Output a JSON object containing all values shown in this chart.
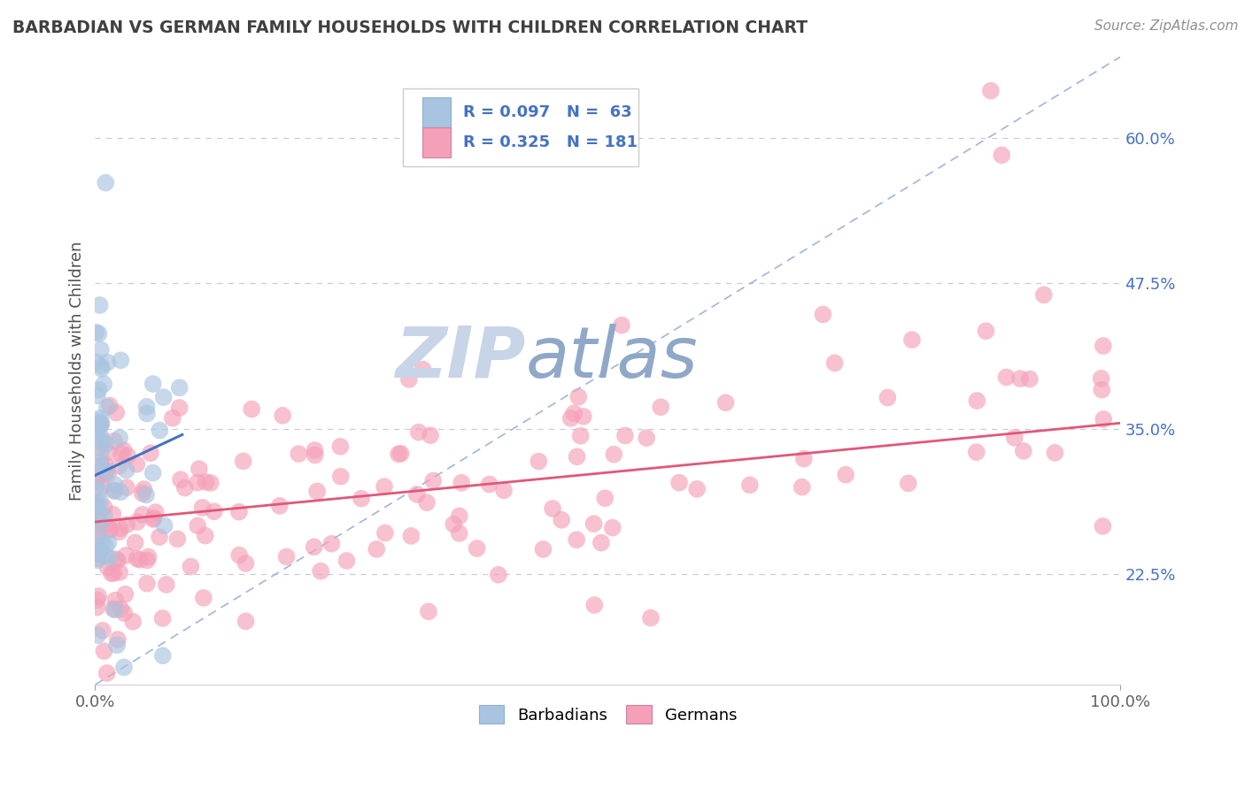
{
  "title": "BARBADIAN VS GERMAN FAMILY HOUSEHOLDS WITH CHILDREN CORRELATION CHART",
  "source": "Source: ZipAtlas.com",
  "ylabel": "Family Households with Children",
  "xlim": [
    0.0,
    1.0
  ],
  "ylim": [
    0.13,
    0.67
  ],
  "yticks": [
    0.225,
    0.35,
    0.475,
    0.6
  ],
  "ytick_labels": [
    "22.5%",
    "35.0%",
    "47.5%",
    "60.0%"
  ],
  "blue_color": "#a8c4e0",
  "pink_color": "#f4a0b8",
  "blue_line_color": "#4472c4",
  "pink_line_color": "#e05878",
  "legend_text_color": "#4472c4",
  "title_color": "#404040",
  "source_color": "#909090",
  "background_color": "#ffffff",
  "watermark_zip_color": "#c8d4e8",
  "watermark_atlas_color": "#90a8c8",
  "grid_color": "#c8ccd8",
  "dash_line_color": "#90a8d8"
}
